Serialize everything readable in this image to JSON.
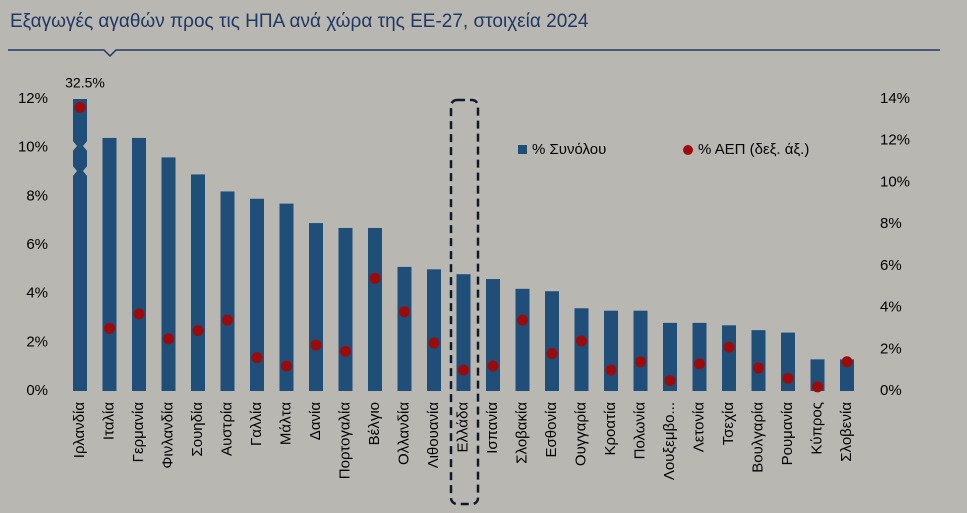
{
  "chart_data": {
    "type": "bar-dot",
    "title": "Εξαγωγές αγαθών προς τις ΗΠΑ ανά χώρα της ΕΕ-27, στοιχεία 2024",
    "categories": [
      "Ιρλανδία",
      "Ιταλία",
      "Γερμανία",
      "Φινλανδία",
      "Σουηδία",
      "Αυστρία",
      "Γαλλία",
      "Μάλτα",
      "Δανία",
      "Πορτογαλία",
      "Βέλγιο",
      "Ολλανδία",
      "Λιθουανία",
      "Ελλάδα",
      "Ισπανία",
      "Σλοβακία",
      "Εσθονία",
      "Ουγγαρία",
      "Κροατία",
      "Πολωνία",
      "Λουξεμβο...",
      "Λετονία",
      "Τσεχία",
      "Βουλγαρία",
      "Ρουμανία",
      "Κύπρος",
      "Σλοβενία"
    ],
    "series": [
      {
        "name": "% Συνόλου",
        "color": "#1f4e79",
        "values": [
          32.5,
          10.4,
          10.4,
          9.6,
          8.9,
          8.2,
          7.9,
          7.7,
          6.9,
          6.7,
          6.7,
          5.1,
          5.0,
          4.8,
          4.6,
          4.2,
          4.1,
          3.4,
          3.3,
          3.3,
          2.8,
          2.8,
          2.7,
          2.5,
          2.4,
          1.3,
          1.3
        ],
        "value_labels": [
          "32.5%",
          null,
          null,
          null,
          null,
          null,
          null,
          null,
          null,
          null,
          null,
          null,
          null,
          null,
          null,
          null,
          null,
          null,
          null,
          null,
          null,
          null,
          null,
          null,
          null,
          null,
          null
        ]
      },
      {
        "name": "% ΑΕΠ (δεξ. άξ.)",
        "color": "#9c0b0b",
        "axis": "y2",
        "values": [
          13.6,
          3.0,
          3.7,
          2.5,
          2.9,
          3.4,
          1.6,
          1.2,
          2.2,
          1.9,
          5.4,
          3.8,
          2.3,
          1.0,
          1.2,
          3.4,
          1.8,
          2.4,
          1.0,
          1.4,
          0.5,
          1.3,
          2.1,
          1.1,
          0.6,
          0.2,
          1.4
        ]
      }
    ],
    "ylim": [
      0,
      12
    ],
    "yticks": [
      {
        "value": 0,
        "label": "0%"
      },
      {
        "value": 2,
        "label": "2%"
      },
      {
        "value": 4,
        "label": "4%"
      },
      {
        "value": 6,
        "label": "6%"
      },
      {
        "value": 8,
        "label": "8%"
      },
      {
        "value": 10,
        "label": "10%"
      },
      {
        "value": 12,
        "label": "12%"
      }
    ],
    "y2lim": [
      0,
      14
    ],
    "y2ticks": [
      {
        "value": 0,
        "label": "0%"
      },
      {
        "value": 2,
        "label": "2%"
      },
      {
        "value": 4,
        "label": "4%"
      },
      {
        "value": 6,
        "label": "6%"
      },
      {
        "value": 8,
        "label": "8%"
      },
      {
        "value": 10,
        "label": "10%"
      },
      {
        "value": 12,
        "label": "12%"
      },
      {
        "value": 14,
        "label": "14%"
      }
    ],
    "grid": false
  }
}
